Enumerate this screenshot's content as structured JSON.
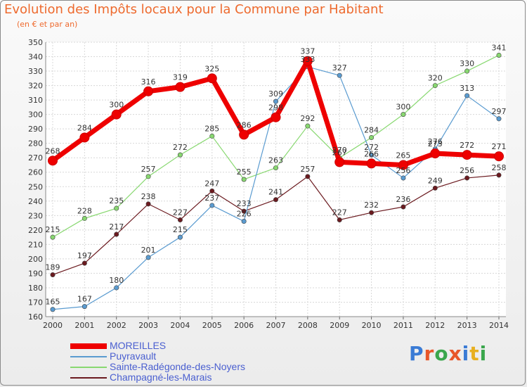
{
  "header": {
    "title": "Evolution des Impôts locaux pour la Commune par Habitant",
    "subtitle": "(en € et par an)"
  },
  "logo": {
    "text": "Proxiti",
    "letter_colors": [
      "#3a7bd5",
      "#e8572a",
      "#3aa64c",
      "#e8572a",
      "#3a7bd5",
      "#e8b020",
      "#3aa64c"
    ]
  },
  "chart_data": {
    "type": "line",
    "title": "Evolution des Impôts locaux pour la Commune par Habitant",
    "subtitle": "(en € et par an)",
    "xlabel": "",
    "ylabel": "",
    "x": [
      2000,
      2001,
      2002,
      2003,
      2004,
      2005,
      2006,
      2007,
      2008,
      2009,
      2010,
      2011,
      2012,
      2013,
      2014
    ],
    "ylim": [
      160,
      350
    ],
    "yticks": [
      160,
      170,
      180,
      190,
      200,
      210,
      220,
      230,
      240,
      250,
      260,
      270,
      280,
      290,
      300,
      310,
      320,
      330,
      340,
      350
    ],
    "grid": true,
    "legend_position": "bottom-left",
    "series": [
      {
        "name": "Champagné-les-Marais",
        "color": "#6b1a1f",
        "values": [
          189,
          197,
          217,
          238,
          227,
          247,
          233,
          241,
          257,
          227,
          232,
          236,
          249,
          256,
          258
        ]
      },
      {
        "name": "Sainte-Radégonde-des-Noyers",
        "color": "#88d870",
        "values": [
          215,
          228,
          235,
          257,
          272,
          285,
          255,
          263,
          292,
          270,
          284,
          300,
          320,
          330,
          341
        ]
      },
      {
        "name": "Puyravault",
        "color": "#5a9bd0",
        "values": [
          165,
          167,
          180,
          201,
          215,
          237,
          226,
          309,
          333,
          327,
          272,
          256,
          276,
          313,
          297
        ]
      },
      {
        "name": "MOREILLES",
        "color": "#ee0000",
        "values": [
          268,
          284,
          300,
          316,
          319,
          325,
          286,
          298,
          337,
          267,
          266,
          265,
          273,
          272,
          271
        ]
      }
    ]
  }
}
